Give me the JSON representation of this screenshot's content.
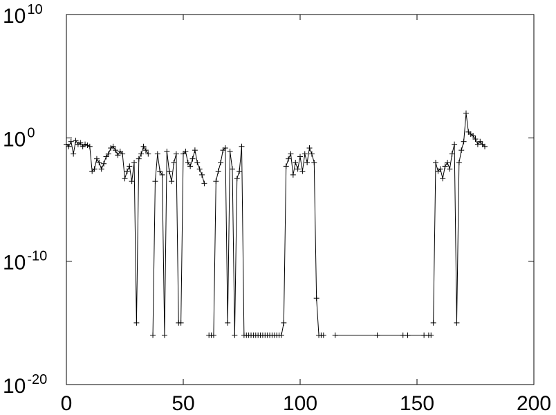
{
  "chart_data": {
    "type": "line",
    "title": "",
    "xlabel": "",
    "ylabel": "",
    "log_y": true,
    "grid": false,
    "marker": "plus",
    "line_color": "#000000",
    "marker_color": "#000000",
    "xlim": [
      0,
      200
    ],
    "ylim": [
      1e-20,
      10000000000.0
    ],
    "x_ticks": [
      0,
      50,
      100,
      150,
      200
    ],
    "x_tick_labels": [
      "0",
      "50",
      "100",
      "150",
      "200"
    ],
    "y_ticks": [
      1e-20,
      1e-10,
      1,
      10000000000.0
    ],
    "y_tick_labels": [
      {
        "base": "10",
        "exp": "-20"
      },
      {
        "base": "10",
        "exp": "-10"
      },
      {
        "base": "10",
        "exp": "0"
      },
      {
        "base": "10",
        "exp": "10"
      }
    ],
    "segments": [
      {
        "x": [
          0,
          1,
          2,
          3,
          4,
          5,
          6,
          7,
          8,
          9,
          10,
          11,
          12,
          13,
          14,
          15,
          16,
          17,
          18,
          19,
          20,
          21,
          22,
          23,
          24,
          25,
          26,
          27,
          28,
          29,
          30,
          31,
          32,
          33,
          34,
          35
        ],
        "y": [
          0.3,
          0.2,
          0.5,
          0.05,
          0.6,
          0.3,
          0.4,
          0.2,
          0.3,
          0.25,
          0.2,
          0.002,
          0.003,
          0.02,
          0.01,
          0.003,
          0.008,
          0.03,
          0.05,
          0.15,
          0.2,
          0.1,
          0.04,
          0.08,
          0.05,
          0.0005,
          0.002,
          0.005,
          0.0003,
          0.01,
          1e-15,
          0.02,
          0.05,
          0.2,
          0.1,
          0.05
        ]
      },
      {
        "x": [
          37,
          38,
          39,
          40,
          41,
          42,
          43,
          44,
          45,
          46,
          47,
          48,
          49,
          50,
          51,
          52,
          53,
          54,
          55,
          56,
          57,
          58,
          59
        ],
        "y": [
          1e-16,
          0.0003,
          0.05,
          0.002,
          0.001,
          1e-16,
          0.08,
          0.002,
          0.0003,
          0.01,
          0.05,
          1e-15,
          1e-15,
          0.05,
          0.08,
          0.01,
          0.005,
          0.02,
          0.1,
          0.01,
          0.003,
          0.001,
          0.0002
        ]
      },
      {
        "x": [
          61,
          62,
          63,
          64,
          65,
          66,
          67,
          68,
          69,
          70,
          71,
          72,
          73,
          74,
          75,
          76,
          77,
          78,
          79,
          80,
          81,
          82,
          83,
          84,
          85,
          86,
          87,
          88,
          89,
          90,
          91,
          92,
          93,
          94,
          95,
          96,
          97,
          98,
          99,
          100,
          101,
          102,
          103,
          104,
          105,
          106,
          107,
          108,
          109,
          110
        ],
        "y": [
          1e-16,
          1e-16,
          1e-16,
          0.0003,
          0.002,
          0.01,
          0.1,
          0.15,
          1e-15,
          0.08,
          0.003,
          1e-16,
          0.0005,
          0.002,
          0.2,
          1e-16,
          1e-16,
          1e-16,
          1e-16,
          1e-16,
          1e-16,
          1e-16,
          1e-16,
          1e-16,
          1e-16,
          1e-16,
          1e-16,
          1e-16,
          1e-16,
          1e-16,
          1e-16,
          1e-16,
          1e-15,
          0.005,
          0.02,
          0.05,
          0.001,
          0.01,
          0.003,
          0.03,
          0.002,
          0.05,
          0.01,
          0.15,
          0.05,
          0.01,
          1e-13,
          1e-16,
          1e-16,
          1e-16
        ]
      },
      {
        "x": [
          115,
          133,
          144,
          146,
          153,
          155,
          156
        ],
        "y": [
          1e-16,
          1e-16,
          1e-16,
          1e-16,
          1e-16,
          1e-16,
          1e-16
        ]
      },
      {
        "x": [
          157,
          158,
          159,
          160,
          161,
          162,
          163,
          164,
          165,
          166,
          167,
          168,
          169,
          170,
          171,
          172,
          173,
          174,
          175,
          176,
          177,
          178,
          179
        ],
        "y": [
          1e-15,
          0.01,
          0.002,
          0.003,
          0.0005,
          0.005,
          0.01,
          0.003,
          0.05,
          0.3,
          1e-15,
          0.01,
          0.1,
          0.5,
          100,
          3,
          2,
          1.5,
          0.8,
          0.3,
          0.5,
          0.3,
          0.2
        ]
      }
    ]
  }
}
